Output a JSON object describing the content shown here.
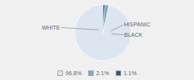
{
  "chart_data": {
    "type": "pie",
    "categories": [
      "WHITE",
      "HISPANIC",
      "BLACK"
    ],
    "values": [
      96.8,
      2.1,
      1.1
    ],
    "value_labels": [
      "96.8%",
      "2.1%",
      "1.1%"
    ],
    "colors": [
      "#dce6f0",
      "#7fa8be",
      "#2e5f7a"
    ],
    "legend": "bottom"
  }
}
